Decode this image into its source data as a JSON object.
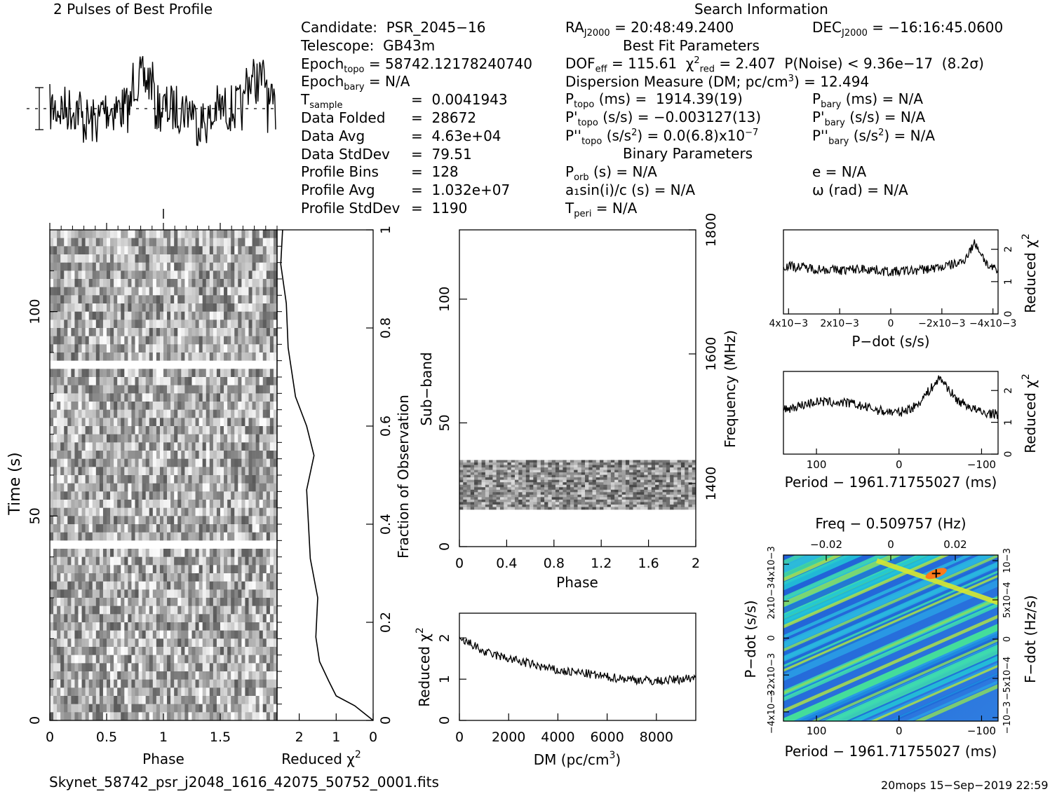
{
  "header": {
    "profile_title": "2 Pulses of Best Profile",
    "search_title": "Search Information",
    "best_fit_title": "Best Fit Parameters",
    "binary_title": "Binary Parameters"
  },
  "left_info": [
    {
      "label": "Candidate:  PSR_2045−16",
      "value": ""
    },
    {
      "label": "Telescope:  GB43m",
      "value": ""
    },
    {
      "label": "Epoch",
      "sub": "topo",
      "value": " = 58742.12178240740"
    },
    {
      "label": "Epoch",
      "sub": "bary",
      "value": " = N/A"
    },
    {
      "label": "T",
      "sub": "sample",
      "value": "=  0.0041943"
    },
    {
      "label": "Data Folded",
      "value": "=  28672"
    },
    {
      "label": "Data Avg",
      "value": "=  4.63e+04"
    },
    {
      "label": "Data StdDev",
      "value": "=  79.51"
    },
    {
      "label": "Profile Bins",
      "value": "=  128"
    },
    {
      "label": "Profile Avg",
      "value": "=  1.032e+07"
    },
    {
      "label": "Profile StdDev",
      "value": "=  1190"
    }
  ],
  "mid_info": {
    "ra": "= 20:48:49.2400",
    "dof": "= 115.61",
    "chi": "= 2.407",
    "pnoise": "P(Noise) < 9.36e−17  (8.2σ)",
    "dm": "Dispersion Measure (DM; pc/cm",
    "dm_val": ") = 12.494",
    "ptopo": "(ms) =  1914.39(19)",
    "pdtopo": "(s/s) = −0.003127(13)",
    "pddtopo_a": "(s/s",
    "pddtopo_b": ") = 0.0(6.8)x10",
    "pddtopo_exp": "−7",
    "porb": "(s) = N/A",
    "a1": "a₁sin(i)/c (s) = N/A",
    "tperi": "= N/A"
  },
  "right_info": {
    "dec": "= −16:16:45.0600",
    "pbary": "(ms) = N/A",
    "pdbary": "(s/s) = N/A",
    "pddbary_a": "(s/s",
    "pddbary_b": ") = N/A",
    "e": "e = N/A",
    "omega": "ω (rad) = N/A"
  },
  "footer": {
    "filename": "Skynet_58742_psr_j2048_1616_42075_50752_0001.fits",
    "stamp": "20mops 15−Sep−2019 22:59"
  },
  "axes": {
    "time": "Time (s)",
    "phase": "Phase",
    "reduced_chi2": "Reduced χ",
    "fraction": "Fraction of Observation",
    "subband": "Sub−band",
    "frequency": "Frequency (MHz)",
    "dm": "DM (pc/cm",
    "pdot": "P−dot (s/s)",
    "period": "Period − 1961.71755027 (ms)",
    "freq_top": "Freq − 0.509757 (Hz)",
    "fdot": "F−dot (Hz/s)"
  },
  "chart_data": [
    {
      "type": "line",
      "name": "profile",
      "title": "2 Pulses of Best Profile",
      "x_range": [
        0,
        2
      ],
      "note": "128 bins shown twice"
    },
    {
      "type": "heatmap",
      "name": "time-phase",
      "xlabel": "Phase",
      "ylabel": "Time (s)",
      "xticks": [
        "0",
        "0.5",
        "1",
        "1.5"
      ],
      "yticks": [
        "0",
        "50",
        "100"
      ],
      "xlim": [
        0,
        2
      ],
      "ylim": [
        0,
        120
      ]
    },
    {
      "type": "line",
      "name": "chi2-vs-fraction",
      "xlabel": "Reduced χ2",
      "ylabel": "Fraction of Observation",
      "xticks": [
        "2",
        "1",
        "0"
      ],
      "yticks": [
        "0",
        "0.2",
        "0.4",
        "0.6",
        "0.8",
        "1"
      ],
      "x": [
        0.0,
        0.5,
        1.0,
        1.2,
        1.45,
        1.55,
        1.5,
        1.7,
        1.75,
        1.8,
        1.6,
        1.8,
        2.1,
        2.3,
        2.35,
        2.5,
        2.45
      ],
      "y": [
        0.0,
        0.03,
        0.05,
        0.08,
        0.12,
        0.17,
        0.25,
        0.33,
        0.4,
        0.47,
        0.54,
        0.6,
        0.66,
        0.76,
        0.85,
        0.93,
        1.0
      ]
    },
    {
      "type": "heatmap",
      "name": "subband-phase",
      "xlabel": "Phase",
      "ylabel": "Sub−band",
      "y2label": "Frequency (MHz)",
      "xticks": [
        "0",
        "0.4",
        "0.8",
        "1.2",
        "1.6",
        "2"
      ],
      "yticks": [
        "0",
        "50",
        "100"
      ],
      "y2ticks": [
        "1400",
        "1600",
        "1800"
      ],
      "xlim": [
        0,
        2
      ],
      "ylim": [
        0,
        128
      ],
      "data_band": [
        15,
        35
      ]
    },
    {
      "type": "line",
      "name": "chi2-vs-dm",
      "xlabel": "DM (pc/cm3)",
      "ylabel": "Reduced χ2",
      "xticks": [
        "0",
        "2000",
        "4000",
        "6000",
        "8000"
      ],
      "yticks": [
        "0",
        "1",
        "2"
      ],
      "xlim": [
        0,
        9600
      ],
      "ylim": [
        0,
        2.6
      ],
      "x": [
        0,
        500,
        1000,
        2000,
        3000,
        4000,
        5000,
        6000,
        7000,
        8000,
        9000,
        9600
      ],
      "y": [
        1.95,
        1.85,
        1.65,
        1.5,
        1.35,
        1.2,
        1.15,
        1.05,
        1.0,
        0.95,
        1.0,
        1.05
      ]
    },
    {
      "type": "line",
      "name": "chi2-vs-pdot",
      "xlabel": "P−dot (s/s)",
      "ylabel": "Reduced χ2",
      "xticks": [
        "4x10−3",
        "2x10−3",
        "0",
        "−2x10−3",
        "−4x10−3"
      ],
      "yticks": [
        "0",
        "1",
        "2"
      ],
      "xlim": [
        0.0042,
        -0.0042
      ],
      "ylim": [
        0,
        2.6
      ],
      "x": [
        0.0042,
        0.003,
        0.002,
        0.001,
        0,
        -0.001,
        -0.002,
        -0.0028,
        -0.0033,
        -0.0038,
        -0.0042
      ],
      "y": [
        1.5,
        1.4,
        1.35,
        1.4,
        1.3,
        1.35,
        1.45,
        1.6,
        2.2,
        1.5,
        1.3
      ]
    },
    {
      "type": "line",
      "name": "chi2-vs-period",
      "xlabel": "Period − 1961.71755027 (ms)",
      "ylabel": "Reduced χ2",
      "xticks": [
        "100",
        "0",
        "−100"
      ],
      "yticks": [
        "0",
        "1",
        "2"
      ],
      "xlim": [
        140,
        -120
      ],
      "ylim": [
        0,
        2.6
      ],
      "x": [
        140,
        100,
        60,
        20,
        0,
        -20,
        -40,
        -50,
        -70,
        -100,
        -120
      ],
      "y": [
        1.4,
        1.65,
        1.6,
        1.35,
        1.3,
        1.5,
        2.1,
        2.4,
        1.7,
        1.3,
        1.25
      ]
    },
    {
      "type": "heatmap",
      "name": "pdot-period",
      "xlabel": "Period − 1961.71755027 (ms)",
      "ylabel": "P−dot (s/s)",
      "toplabel": "Freq − 0.509757 (Hz)",
      "y2label": "F−dot (Hz/s)",
      "xticks": [
        "100",
        "0",
        "−100"
      ],
      "topticks": [
        "−0.02",
        "0",
        "0.02"
      ],
      "yticks": [
        "4x10−3",
        "2x10−3",
        "0",
        "−2x10−3",
        "−4x10−3"
      ],
      "y2ticks": [
        "−10−3",
        "−5x10−4",
        "0",
        "5x10−4",
        "10−3"
      ],
      "best": {
        "period": -45,
        "pdot": -0.0035
      }
    }
  ]
}
